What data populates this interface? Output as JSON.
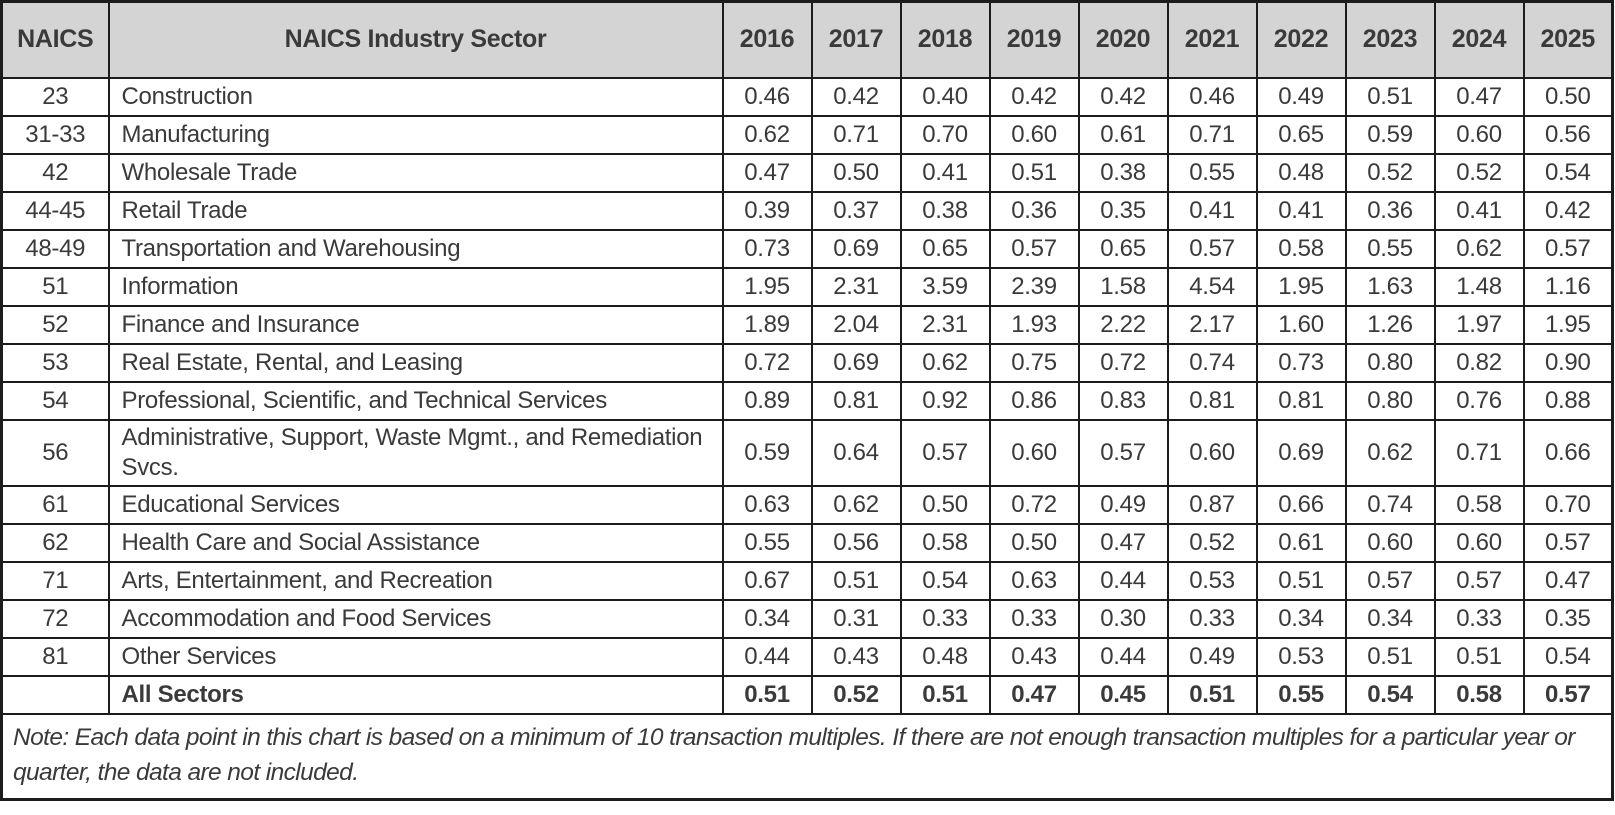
{
  "chart_data": {
    "type": "table",
    "columns": [
      "NAICS",
      "NAICS Industry Sector",
      "2016",
      "2017",
      "2018",
      "2019",
      "2020",
      "2021",
      "2022",
      "2023",
      "2024",
      "2025"
    ],
    "categories": [
      "2016",
      "2017",
      "2018",
      "2019",
      "2020",
      "2021",
      "2022",
      "2023",
      "2024",
      "2025"
    ],
    "rows": [
      {
        "naics": "23",
        "sector": "Construction",
        "values": [
          "0.46",
          "0.42",
          "0.40",
          "0.42",
          "0.42",
          "0.46",
          "0.49",
          "0.51",
          "0.47",
          "0.50"
        ]
      },
      {
        "naics": "31-33",
        "sector": "Manufacturing",
        "values": [
          "0.62",
          "0.71",
          "0.70",
          "0.60",
          "0.61",
          "0.71",
          "0.65",
          "0.59",
          "0.60",
          "0.56"
        ]
      },
      {
        "naics": "42",
        "sector": "Wholesale Trade",
        "values": [
          "0.47",
          "0.50",
          "0.41",
          "0.51",
          "0.38",
          "0.55",
          "0.48",
          "0.52",
          "0.52",
          "0.54"
        ]
      },
      {
        "naics": "44-45",
        "sector": "Retail Trade",
        "values": [
          "0.39",
          "0.37",
          "0.38",
          "0.36",
          "0.35",
          "0.41",
          "0.41",
          "0.36",
          "0.41",
          "0.42"
        ]
      },
      {
        "naics": "48-49",
        "sector": "Transportation and Warehousing",
        "values": [
          "0.73",
          "0.69",
          "0.65",
          "0.57",
          "0.65",
          "0.57",
          "0.58",
          "0.55",
          "0.62",
          "0.57"
        ]
      },
      {
        "naics": "51",
        "sector": "Information",
        "values": [
          "1.95",
          "2.31",
          "3.59",
          "2.39",
          "1.58",
          "4.54",
          "1.95",
          "1.63",
          "1.48",
          "1.16"
        ]
      },
      {
        "naics": "52",
        "sector": "Finance and Insurance",
        "values": [
          "1.89",
          "2.04",
          "2.31",
          "1.93",
          "2.22",
          "2.17",
          "1.60",
          "1.26",
          "1.97",
          "1.95"
        ]
      },
      {
        "naics": "53",
        "sector": "Real Estate, Rental, and Leasing",
        "values": [
          "0.72",
          "0.69",
          "0.62",
          "0.75",
          "0.72",
          "0.74",
          "0.73",
          "0.80",
          "0.82",
          "0.90"
        ]
      },
      {
        "naics": "54",
        "sector": "Professional, Scientific, and Technical Services",
        "values": [
          "0.89",
          "0.81",
          "0.92",
          "0.86",
          "0.83",
          "0.81",
          "0.81",
          "0.80",
          "0.76",
          "0.88"
        ]
      },
      {
        "naics": "56",
        "sector": "Administrative, Support, Waste Mgmt., and Remediation Svcs.",
        "values": [
          "0.59",
          "0.64",
          "0.57",
          "0.60",
          "0.57",
          "0.60",
          "0.69",
          "0.62",
          "0.71",
          "0.66"
        ]
      },
      {
        "naics": "61",
        "sector": "Educational Services",
        "values": [
          "0.63",
          "0.62",
          "0.50",
          "0.72",
          "0.49",
          "0.87",
          "0.66",
          "0.74",
          "0.58",
          "0.70"
        ]
      },
      {
        "naics": "62",
        "sector": "Health Care and Social Assistance",
        "values": [
          "0.55",
          "0.56",
          "0.58",
          "0.50",
          "0.47",
          "0.52",
          "0.61",
          "0.60",
          "0.60",
          "0.57"
        ]
      },
      {
        "naics": "71",
        "sector": "Arts, Entertainment, and Recreation",
        "values": [
          "0.67",
          "0.51",
          "0.54",
          "0.63",
          "0.44",
          "0.53",
          "0.51",
          "0.57",
          "0.57",
          "0.47"
        ]
      },
      {
        "naics": "72",
        "sector": "Accommodation and Food Services",
        "values": [
          "0.34",
          "0.31",
          "0.33",
          "0.33",
          "0.30",
          "0.33",
          "0.34",
          "0.34",
          "0.33",
          "0.35"
        ]
      },
      {
        "naics": "81",
        "sector": "Other Services",
        "values": [
          "0.44",
          "0.43",
          "0.48",
          "0.43",
          "0.44",
          "0.49",
          "0.53",
          "0.51",
          "0.51",
          "0.54"
        ]
      }
    ],
    "total_row": {
      "naics": "",
      "sector": "All Sectors",
      "values": [
        "0.51",
        "0.52",
        "0.51",
        "0.47",
        "0.45",
        "0.51",
        "0.55",
        "0.54",
        "0.58",
        "0.57"
      ]
    },
    "note": "Note: Each data point in this chart is based on a minimum of 10 transaction multiples. If there are not enough transaction multiples for a particular year or quarter, the data are not included.",
    "colors": {
      "header_bg": "#d4d4d4",
      "border": "#1c1c1c",
      "text": "#3a3a3a"
    }
  }
}
